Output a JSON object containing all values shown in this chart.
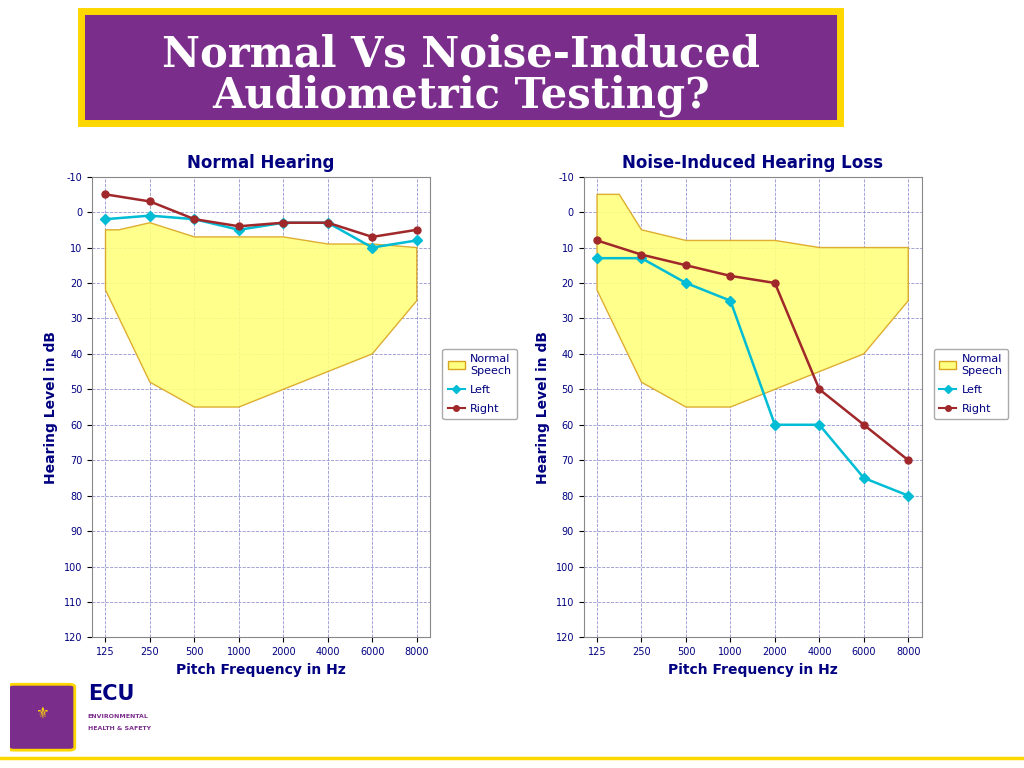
{
  "title_line1": "Normal Vs Noise-Induced",
  "title_line2": "Audiometric Testing?",
  "title_bg": "#7B2D8B",
  "title_border": "#FFD700",
  "title_color": "#FFFFFF",
  "bg_color": "#FFFFFF",
  "chart1_title": "Normal Hearing",
  "chart2_title": "Noise-Induced Hearing Loss",
  "xlabel": "Pitch Frequency in Hz",
  "ylabel": "Hearing Level in dB",
  "freq_labels": [
    "125",
    "250",
    "500",
    "1000",
    "2000",
    "4000",
    "6000",
    "8000"
  ],
  "ylim_min": -10,
  "ylim_max": 120,
  "yticks": [
    -10,
    0,
    10,
    20,
    30,
    40,
    50,
    60,
    70,
    80,
    90,
    100,
    110,
    120
  ],
  "normal_left": [
    2,
    1,
    2,
    5,
    3,
    3,
    10,
    8
  ],
  "normal_right": [
    -5,
    -3,
    2,
    4,
    3,
    3,
    7,
    5
  ],
  "nihl_left": [
    13,
    13,
    20,
    25,
    60,
    60,
    75,
    80
  ],
  "nihl_right": [
    8,
    12,
    15,
    18,
    20,
    50,
    60,
    70
  ],
  "left_color": "#00BCD4",
  "right_color": "#A0282A",
  "banana_normal_upper_x": [
    0.0,
    0.3,
    1.0,
    2.0,
    3.0,
    4.0,
    5.0,
    6.0,
    7.0
  ],
  "banana_normal_upper_y": [
    5,
    5,
    3,
    7,
    7,
    7,
    9,
    9,
    10
  ],
  "banana_normal_lower_x": [
    0.0,
    0.5,
    1.0,
    2.0,
    3.0,
    4.0,
    5.0,
    6.0,
    7.0
  ],
  "banana_normal_lower_y": [
    22,
    35,
    48,
    55,
    55,
    50,
    45,
    40,
    25
  ],
  "banana_nihl_upper_x": [
    0.0,
    0.5,
    1.0,
    2.0,
    3.0,
    4.0,
    5.0,
    6.0,
    7.0
  ],
  "banana_nihl_upper_y": [
    -5,
    -5,
    5,
    8,
    8,
    8,
    10,
    10,
    10
  ],
  "banana_nihl_lower_x": [
    0.0,
    0.5,
    1.0,
    2.0,
    3.0,
    4.0,
    5.0,
    6.0,
    7.0
  ],
  "banana_nihl_lower_y": [
    22,
    35,
    48,
    55,
    55,
    50,
    45,
    40,
    25
  ],
  "grid_color": "#8888CC",
  "title_fontsize": 30,
  "chart_title_fontsize": 12,
  "axis_label_fontsize": 9,
  "tick_fontsize": 7,
  "legend_fontsize": 8
}
